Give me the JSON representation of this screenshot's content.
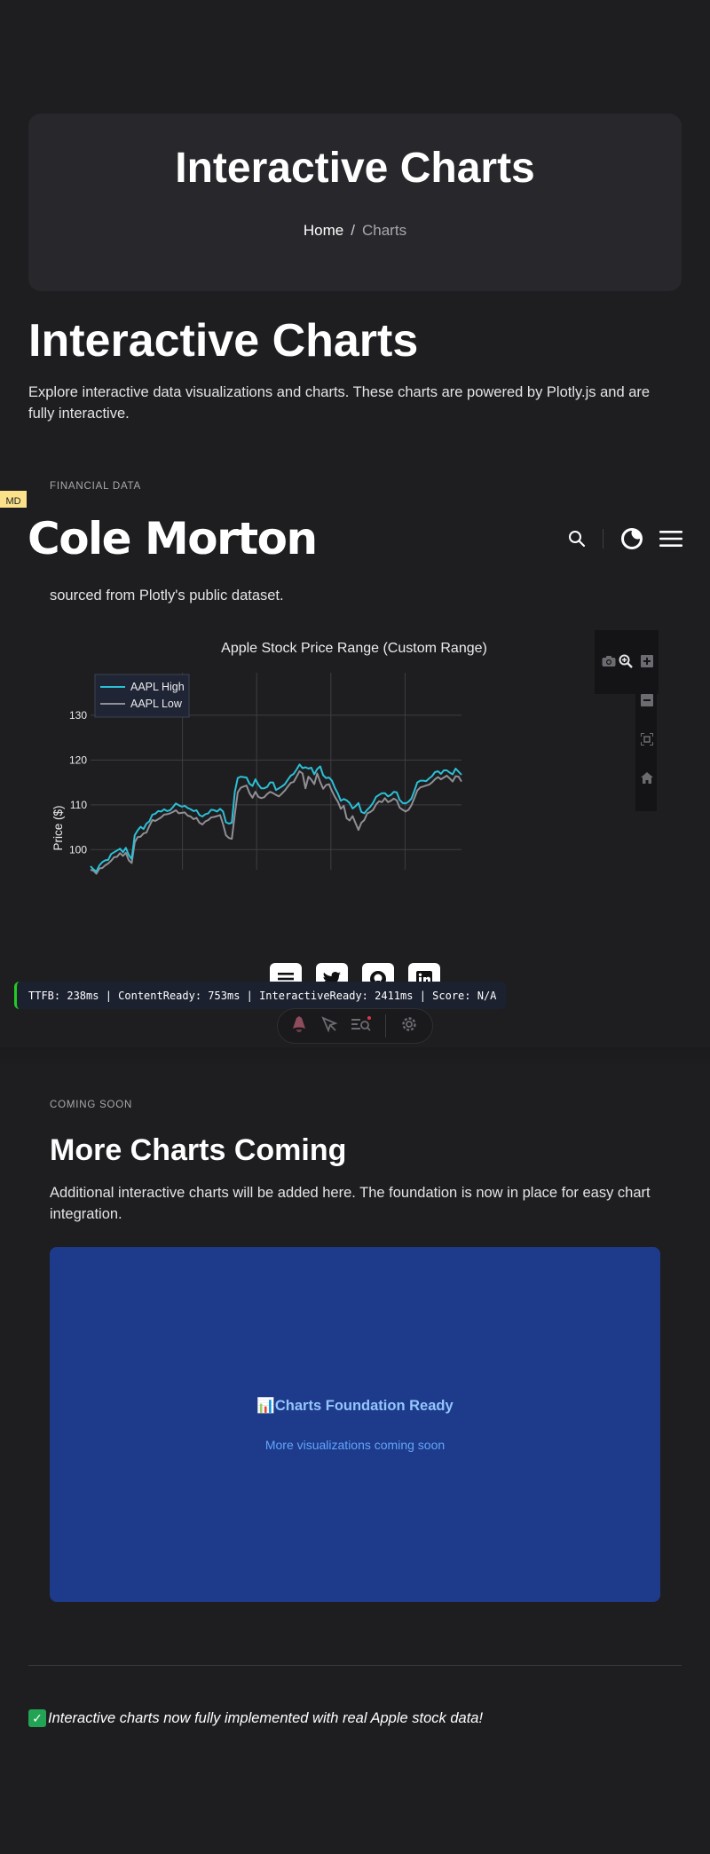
{
  "hero": {
    "title": "Interactive Charts",
    "breadcrumb": {
      "home": "Home",
      "separator": "/",
      "current": "Charts"
    }
  },
  "page": {
    "title": "Interactive Charts",
    "intro": "Explore interactive data visualizations and charts. These charts are powered by Plotly.js and are fully interactive."
  },
  "badge": "MD",
  "section_financial": {
    "label": "FINANCIAL DATA",
    "note": "sourced from Plotly's public dataset."
  },
  "header": {
    "brand": "Cole Morton",
    "icons": [
      "search-icon",
      "theme-toggle-icon",
      "menu-icon"
    ]
  },
  "chart_data": {
    "type": "line",
    "title": "Apple Stock Price Range (Custom Range)",
    "xlabel": "",
    "ylabel": "Price ($)",
    "ylim": [
      95.5,
      139.5
    ],
    "yticks": [
      100,
      110,
      120,
      130
    ],
    "grid": true,
    "legend_position": "top-left",
    "series": [
      {
        "name": "AAPL High",
        "color": "#2bc0d6",
        "values": [
          96.3,
          95.6,
          95.1,
          96.5,
          97.2,
          97.6,
          97.7,
          99.0,
          99.4,
          99.8,
          100.2,
          99.4,
          100.4,
          98.8,
          97.9,
          103.2,
          104.3,
          105.1,
          104.6,
          105.8,
          106.3,
          107.8,
          108.0,
          108.6,
          108.5,
          109.0,
          108.6,
          108.8,
          109.5,
          110.3,
          109.9,
          109.6,
          109.8,
          109.3,
          109.0,
          108.6,
          108.8,
          107.7,
          107.4,
          107.9,
          108.1,
          108.9,
          108.8,
          108.5,
          109.1,
          108.5,
          106.1,
          105.8,
          106.0,
          112.9,
          116.0,
          116.3,
          116.2,
          116.1,
          114.7,
          114.2,
          115.7,
          114.5,
          113.7,
          113.7,
          114.0,
          115.0,
          115.0,
          113.3,
          113.7,
          114.1,
          114.6,
          115.6,
          116.5,
          116.9,
          117.9,
          119.0,
          118.2,
          118.4,
          118.1,
          118.3,
          116.8,
          118.0,
          118.6,
          116.6,
          116.0,
          116.1,
          115.4,
          113.8,
          112.5,
          110.9,
          111.3,
          111.0,
          110.4,
          109.2,
          109.7,
          110.4,
          108.4,
          108.1,
          108.9,
          109.6,
          110.5,
          111.8,
          112.2,
          112.6,
          112.6,
          111.9,
          112.2,
          112.9,
          112.8,
          111.1,
          110.4,
          110.3,
          110.7,
          111.4,
          113.1,
          115.0,
          115.4,
          115.4,
          115.3,
          115.9,
          116.4,
          117.3,
          117.5,
          116.9,
          117.7,
          117.7,
          117.2,
          116.8,
          118.1,
          117.4,
          116.7
        ]
      },
      {
        "name": "AAPL Low",
        "color": "#8f8f94",
        "values": [
          95.5,
          95.3,
          94.6,
          95.8,
          95.9,
          96.5,
          96.9,
          97.5,
          98.3,
          98.4,
          99.2,
          98.6,
          99.3,
          97.6,
          97.0,
          101.6,
          102.8,
          102.9,
          103.6,
          103.8,
          105.3,
          106.6,
          106.4,
          106.8,
          107.2,
          107.8,
          107.9,
          108.1,
          108.4,
          108.8,
          108.1,
          108.2,
          108.3,
          107.6,
          107.4,
          106.8,
          107.1,
          106.0,
          105.6,
          106.3,
          106.6,
          107.2,
          107.3,
          107.5,
          107.7,
          105.7,
          103.2,
          102.6,
          102.4,
          107.9,
          112.8,
          113.8,
          114.1,
          114.3,
          112.6,
          111.6,
          112.9,
          111.8,
          111.5,
          111.7,
          112.4,
          112.9,
          112.6,
          112.2,
          111.9,
          112.5,
          113.2,
          114.1,
          114.9,
          115.1,
          116.3,
          117.5,
          117.0,
          113.7,
          116.3,
          115.6,
          114.6,
          117.0,
          115.1,
          113.6,
          114.4,
          114.6,
          113.1,
          111.8,
          110.7,
          109.1,
          109.8,
          107.0,
          106.5,
          107.5,
          105.9,
          104.4,
          106.0,
          106.6,
          108.1,
          108.4,
          108.9,
          110.1,
          110.8,
          110.6,
          111.5,
          110.6,
          110.9,
          111.4,
          111.0,
          109.4,
          108.9,
          108.5,
          108.9,
          109.9,
          111.5,
          113.2,
          113.9,
          114.1,
          114.3,
          114.5,
          115.0,
          115.7,
          116.2,
          115.7,
          116.1,
          116.5,
          115.9,
          115.2,
          116.4,
          116.3,
          115.2
        ]
      }
    ],
    "legend": [
      "AAPL High",
      "AAPL Low"
    ],
    "modebar": [
      "camera-icon",
      "zoom-icon",
      "zoom-in-icon",
      "zoom-out-icon",
      "autoscale-icon",
      "reset-axes-icon"
    ]
  },
  "share": [
    "share-icon",
    "twitter-icon",
    "github-icon",
    "linkedin-icon"
  ],
  "perf": "TTFB: 238ms | ContentReady: 753ms | InteractiveReady: 2411ms | Score: N/A",
  "devtools": [
    "astro-icon",
    "inspect-icon",
    "audit-icon",
    "settings-icon"
  ],
  "section_coming": {
    "label": "COMING SOON",
    "title": "More Charts Coming",
    "text": "Additional interactive charts will be added here. The foundation is now in place for easy chart integration."
  },
  "ready_card": {
    "icon": "📊",
    "title": "Charts Foundation Ready",
    "subtitle": "More visualizations coming soon",
    "background": "#1e3a8a"
  },
  "footer_note": {
    "icon": "✅",
    "text": "Interactive charts now fully implemented with real Apple stock data!"
  }
}
